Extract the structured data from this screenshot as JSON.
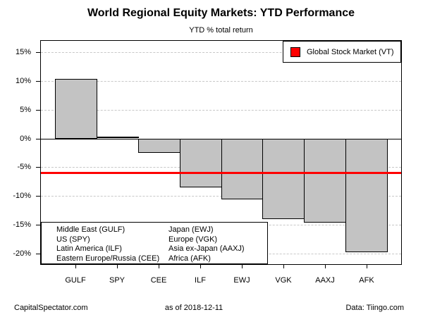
{
  "title": "World Regional Equity Markets: YTD Performance",
  "subtitle": "YTD % total return",
  "legend": {
    "label": "Global Stock Market (VT)",
    "swatch_color": "#ff0000"
  },
  "chart_data": {
    "type": "bar",
    "categories": [
      "GULF",
      "SPY",
      "CEE",
      "ILF",
      "EWJ",
      "VGK",
      "AAXJ",
      "AFK"
    ],
    "values": [
      10.4,
      0.3,
      -2.4,
      -8.5,
      -10.6,
      -14.0,
      -14.6,
      -19.7
    ],
    "title": "World Regional Equity Markets: YTD Performance",
    "subtitle": "YTD % total return",
    "xlabel": "",
    "ylabel": "YTD % total return",
    "y_ticks": [
      15,
      10,
      5,
      0,
      -5,
      -10,
      -15,
      -20
    ],
    "y_tick_labels": [
      "15%",
      "10%",
      "5%",
      "0%",
      "-5%",
      "-10%",
      "-15%",
      "-20%"
    ],
    "ylim": [
      -21.9,
      17.0
    ],
    "grid": "horizontal dashed",
    "bar_fill": "#c3c3c3",
    "bar_border": "#000000",
    "legend_position": "top-right",
    "reference_line": {
      "label": "Global Stock Market (VT)",
      "value": -6.0,
      "color": "#ff0000"
    }
  },
  "key_box": {
    "column1": [
      "Middle East (GULF)",
      "US (SPY)",
      "Latin America (ILF)",
      "Eastern Europe/Russia (CEE)"
    ],
    "column2": [
      "Japan (EWJ)",
      "Europe (VGK)",
      "Asia ex-Japan (AAXJ)",
      "Africa (AFK)"
    ]
  },
  "footer": {
    "left": "CapitalSpectator.com",
    "center": "as of  2018-12-11",
    "right": "Data: Tiingo.com"
  }
}
